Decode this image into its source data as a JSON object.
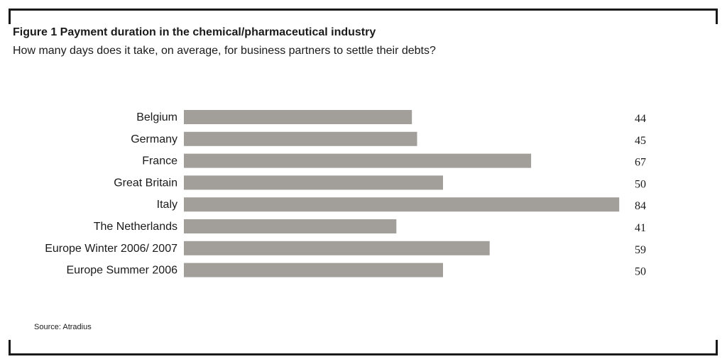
{
  "figure": {
    "title": "Figure 1 Payment duration in the chemical/pharmaceutical industry",
    "subtitle": "How many days does it take, on average, for business partners to settle their debts?",
    "source": "Source: Atradius"
  },
  "colors": {
    "bar": "#a29e99",
    "text": "#1a1a1a",
    "frame": "#1a1a1a"
  },
  "chart_data": {
    "type": "bar",
    "orientation": "horizontal",
    "title": "Figure 1 Payment duration in the chemical/pharmaceutical industry",
    "subtitle": "How many days does it take, on average, for business partners to settle their debts?",
    "xlabel": "",
    "ylabel": "",
    "xlim": [
      0,
      84
    ],
    "grid": false,
    "legend": "none",
    "categories": [
      "Belgium",
      "Germany",
      "France",
      "Great Britain",
      "Italy",
      "The Netherlands",
      "Europe Winter 2006/ 2007",
      "Europe Summer 2006"
    ],
    "values": [
      44,
      45,
      67,
      50,
      84,
      41,
      59,
      50
    ]
  }
}
